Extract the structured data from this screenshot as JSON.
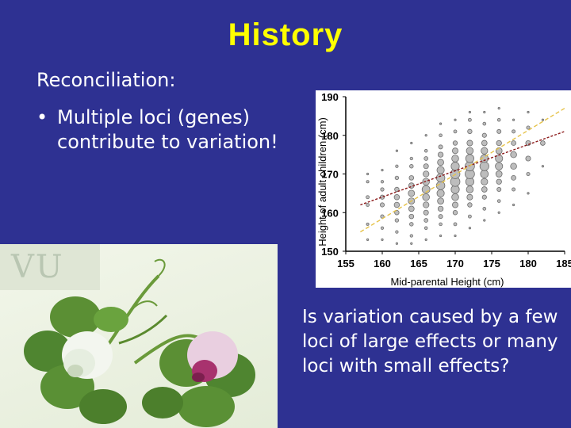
{
  "slide": {
    "title": "History",
    "intro": "Reconciliation:",
    "bullet_symbol": "•",
    "bullet_text": "Multiple loci (genes) contribute to variation!",
    "question": "Is variation caused by a few loci of large effects or many loci with small effects?"
  },
  "logo": {
    "text": "VU"
  },
  "colors": {
    "background": "#2e3192",
    "title": "#ffff00",
    "text": "#ffffff",
    "regression_line": "#8b1a1a",
    "identity_line": "#e6c34a"
  },
  "chart_data": {
    "type": "scatter",
    "xlabel": "Mid-parental Height (cm)",
    "ylabel": "Height of adult children (cm)",
    "xlim": [
      155,
      185
    ],
    "ylim": [
      150,
      190
    ],
    "xticks": [
      "155",
      "160",
      "165",
      "170",
      "175",
      "180",
      "185"
    ],
    "yticks": [
      "150",
      "160",
      "170",
      "180",
      "190"
    ],
    "point_columns": [
      {
        "x": 158,
        "y": [
          153,
          157,
          162,
          164,
          168,
          170
        ]
      },
      {
        "x": 160,
        "y": [
          153,
          156,
          159,
          162,
          164,
          166,
          168,
          171
        ]
      },
      {
        "x": 162,
        "y": [
          152,
          155,
          158,
          160,
          162,
          164,
          166,
          169,
          172,
          176
        ]
      },
      {
        "x": 164,
        "y": [
          152,
          154,
          157,
          159,
          161,
          163,
          165,
          167,
          169,
          172,
          174,
          178
        ]
      },
      {
        "x": 166,
        "y": [
          153,
          156,
          158,
          160,
          162,
          164,
          166,
          168,
          170,
          172,
          174,
          176,
          180
        ]
      },
      {
        "x": 168,
        "y": [
          154,
          157,
          159,
          161,
          163,
          165,
          167,
          169,
          171,
          173,
          175,
          177,
          180,
          183
        ]
      },
      {
        "x": 170,
        "y": [
          154,
          157,
          160,
          162,
          164,
          166,
          168,
          170,
          172,
          174,
          176,
          178,
          181,
          184
        ]
      },
      {
        "x": 172,
        "y": [
          156,
          159,
          162,
          164,
          166,
          168,
          170,
          172,
          174,
          176,
          178,
          181,
          184,
          186
        ]
      },
      {
        "x": 174,
        "y": [
          158,
          161,
          164,
          166,
          168,
          170,
          172,
          174,
          176,
          178,
          180,
          183,
          186
        ]
      },
      {
        "x": 176,
        "y": [
          160,
          163,
          166,
          168,
          170,
          172,
          174,
          176,
          178,
          181,
          184,
          187
        ]
      },
      {
        "x": 178,
        "y": [
          162,
          166,
          169,
          172,
          175,
          178,
          181,
          184
        ]
      },
      {
        "x": 180,
        "y": [
          165,
          170,
          174,
          178,
          182,
          186
        ]
      },
      {
        "x": 182,
        "y": [
          172,
          178,
          184
        ]
      }
    ],
    "lines": [
      {
        "style": "dark-dashed",
        "x": [
          157,
          185
        ],
        "y": [
          162,
          181
        ]
      },
      {
        "style": "yellow-dashed",
        "x": [
          157,
          185
        ],
        "y": [
          155,
          187
        ]
      }
    ]
  }
}
